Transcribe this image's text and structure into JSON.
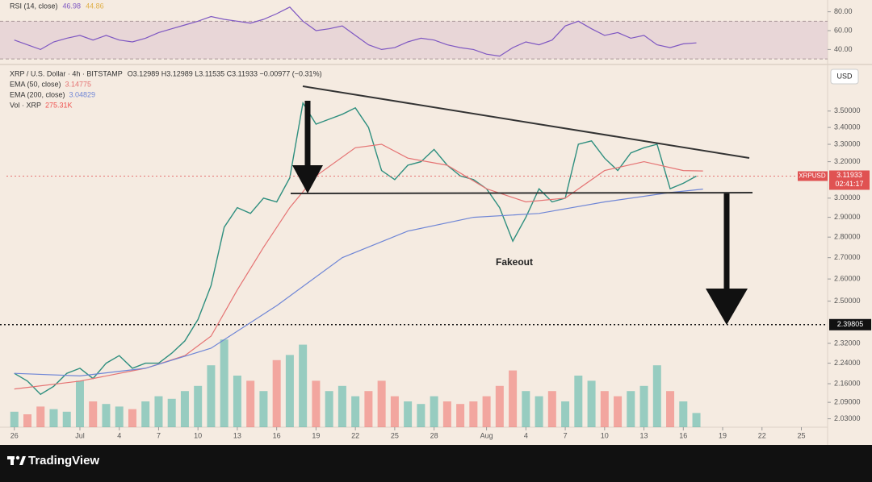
{
  "chart_data": {
    "type": "line",
    "log_scale": true,
    "grid": false,
    "xlim": [
      -0.6,
      62
    ],
    "ylim": [
      2.0,
      3.79
    ],
    "xticks": [
      {
        "value": 0,
        "label": "26"
      },
      {
        "value": 5,
        "label": "Jul"
      },
      {
        "value": 8,
        "label": "4"
      },
      {
        "value": 11,
        "label": "7"
      },
      {
        "value": 14,
        "label": "10"
      },
      {
        "value": 17,
        "label": "13"
      },
      {
        "value": 20,
        "label": "16"
      },
      {
        "value": 23,
        "label": "19"
      },
      {
        "value": 26,
        "label": "22"
      },
      {
        "value": 29,
        "label": "25"
      },
      {
        "value": 32,
        "label": "28"
      },
      {
        "value": 36,
        "label": "Aug"
      },
      {
        "value": 39,
        "label": "4"
      },
      {
        "value": 42,
        "label": "7"
      },
      {
        "value": 45,
        "label": "10"
      },
      {
        "value": 48,
        "label": "13"
      },
      {
        "value": 51,
        "label": "16"
      },
      {
        "value": 54,
        "label": "19"
      },
      {
        "value": 57,
        "label": "22"
      },
      {
        "value": 60,
        "label": "25"
      }
    ],
    "yticks": [
      {
        "value": 3.5,
        "label": "3.50000"
      },
      {
        "value": 3.4,
        "label": "3.40000"
      },
      {
        "value": 3.3,
        "label": "3.30000"
      },
      {
        "value": 3.2,
        "label": "3.20000"
      },
      {
        "value": 3.0,
        "label": "3.00000"
      },
      {
        "value": 2.9,
        "label": "2.90000"
      },
      {
        "value": 2.8,
        "label": "2.80000"
      },
      {
        "value": 2.7,
        "label": "2.70000"
      },
      {
        "value": 2.6,
        "label": "2.60000"
      },
      {
        "value": 2.5,
        "label": "2.50000"
      },
      {
        "value": 2.32,
        "label": "2.32000"
      },
      {
        "value": 2.24,
        "label": "2.24000"
      },
      {
        "value": 2.16,
        "label": "2.16000"
      },
      {
        "value": 2.09,
        "label": "2.09000"
      },
      {
        "value": 2.03,
        "label": "2.03000"
      }
    ],
    "x": [
      0,
      1,
      2,
      3,
      4,
      5,
      6,
      7,
      8,
      9,
      10,
      11,
      12,
      13,
      14,
      15,
      16,
      17,
      18,
      19,
      20,
      21,
      22,
      23,
      24,
      25,
      26,
      27,
      28,
      29,
      30,
      31,
      32,
      33,
      34,
      35,
      36,
      37,
      38,
      39,
      40,
      41,
      42,
      43,
      44,
      45,
      46,
      47,
      48,
      49,
      50,
      51,
      52
    ],
    "ohlc": "O3.12989 H3.12989 L3.11535 C3.11933 −0.00977 (−0.31%)",
    "currency": "USD",
    "symbol": "XRPUSD",
    "countdown": "02:41:17",
    "series": [
      {
        "name": "XRP / U.S. Dollar · 4h · BITSTAMP",
        "color": "#2f8f7f",
        "values": [
          2.2,
          2.17,
          2.12,
          2.15,
          2.2,
          2.22,
          2.18,
          2.24,
          2.27,
          2.22,
          2.24,
          2.24,
          2.28,
          2.33,
          2.42,
          2.57,
          2.85,
          2.95,
          2.92,
          3.0,
          2.98,
          3.11,
          3.55,
          3.42,
          3.45,
          3.48,
          3.52,
          3.4,
          3.15,
          3.1,
          3.18,
          3.2,
          3.27,
          3.18,
          3.12,
          3.1,
          3.05,
          2.95,
          2.78,
          2.9,
          3.05,
          2.98,
          3.0,
          3.3,
          3.32,
          3.22,
          3.15,
          3.25,
          3.28,
          3.3,
          3.05,
          3.08,
          3.11933
        ]
      },
      {
        "name": "EMA (50, close)",
        "color": "#e57373",
        "x": [
          0,
          5,
          10,
          13,
          15,
          17,
          19,
          21,
          23,
          26,
          28,
          30,
          33,
          36,
          39,
          42,
          45,
          48,
          51,
          52.5
        ],
        "values": [
          2.14,
          2.17,
          2.22,
          2.27,
          2.35,
          2.55,
          2.75,
          2.95,
          3.12,
          3.28,
          3.3,
          3.22,
          3.18,
          3.05,
          2.98,
          3.0,
          3.15,
          3.2,
          3.15,
          3.14775
        ]
      },
      {
        "name": "EMA (200, close)",
        "color": "#6f86d6",
        "x": [
          0,
          5,
          10,
          15,
          20,
          25,
          30,
          35,
          40,
          45,
          50,
          52.5
        ],
        "values": [
          2.2,
          2.19,
          2.22,
          2.3,
          2.48,
          2.7,
          2.83,
          2.9,
          2.92,
          2.98,
          3.03,
          3.04829
        ]
      }
    ],
    "volume": {
      "name": "Vol · XRP",
      "vlim": [
        0,
        7000000
      ],
      "up_color": "#26a69a",
      "down_color": "#ef5350",
      "values": [
        300000,
        250000,
        400000,
        350000,
        300000,
        900000,
        500000,
        450000,
        400000,
        350000,
        500000,
        600000,
        550000,
        700000,
        800000,
        1200000,
        1700000,
        1000000,
        900000,
        700000,
        1300000,
        1400000,
        1600000,
        900000,
        700000,
        800000,
        600000,
        700000,
        900000,
        600000,
        500000,
        450000,
        600000,
        500000,
        450000,
        500000,
        600000,
        800000,
        1100000,
        700000,
        600000,
        700000,
        500000,
        1000000,
        900000,
        700000,
        600000,
        700000,
        800000,
        1200000,
        700000,
        500000,
        275310
      ],
      "last_label": "275.31K"
    },
    "level": 2.39805,
    "annotation": "Fakeout",
    "rsi": {
      "name": "RSI (14, close)",
      "color": "#7e57c2",
      "ma_label": "44.86",
      "ma_color": "#e0b04a",
      "ylim": [
        25.8,
        90.8
      ],
      "band": [
        30,
        70
      ],
      "yticks": [
        {
          "value": 80,
          "label": "80.00"
        },
        {
          "value": 60,
          "label": "60.00"
        },
        {
          "value": 40,
          "label": "40.00"
        }
      ],
      "values": [
        50,
        45,
        40,
        48,
        52,
        55,
        50,
        55,
        50,
        48,
        52,
        58,
        62,
        66,
        70,
        75,
        72,
        70,
        68,
        72,
        78,
        85,
        70,
        60,
        62,
        65,
        55,
        45,
        40,
        42,
        48,
        52,
        50,
        45,
        42,
        40,
        35,
        33,
        42,
        48,
        45,
        50,
        65,
        70,
        62,
        55,
        58,
        52,
        55,
        45,
        42,
        46,
        46.98
      ]
    }
  },
  "footer": {
    "brand": "TradingView"
  }
}
